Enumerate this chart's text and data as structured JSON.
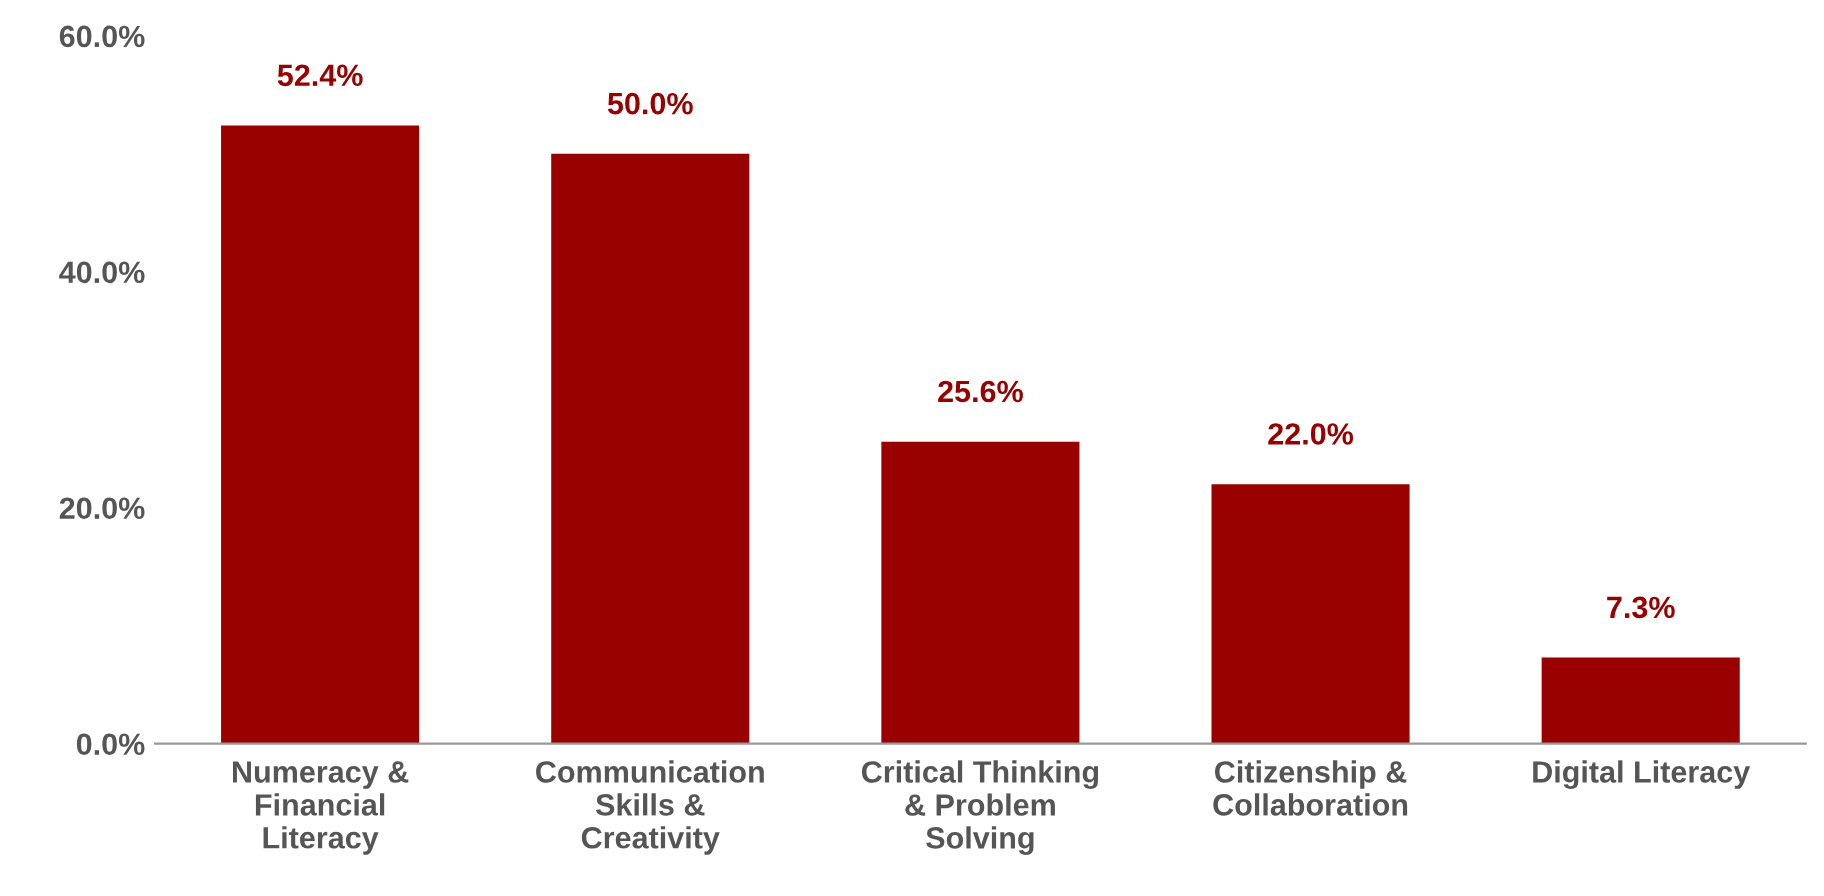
{
  "chart_data": {
    "type": "bar",
    "categories": [
      "Numeracy &\nFinancial\nLiteracy",
      "Communication\nSkills &\nCreativity",
      "Critical Thinking\n& Problem\nSolving",
      "Citizenship &\nCollaboration",
      "Digital Literacy"
    ],
    "values": [
      52.4,
      50.0,
      25.6,
      22.0,
      7.3
    ],
    "value_labels": [
      "52.4%",
      "50.0%",
      "25.6%",
      "22.0%",
      "7.3%"
    ],
    "color": "#990000",
    "ylim": [
      0,
      60
    ],
    "yticks": [
      {
        "value": 0,
        "label": "0.0%"
      },
      {
        "value": 20,
        "label": "20.0%"
      },
      {
        "value": 40,
        "label": "40.0%"
      },
      {
        "value": 60,
        "label": "60.0%"
      }
    ],
    "grid": false,
    "legend": false
  }
}
